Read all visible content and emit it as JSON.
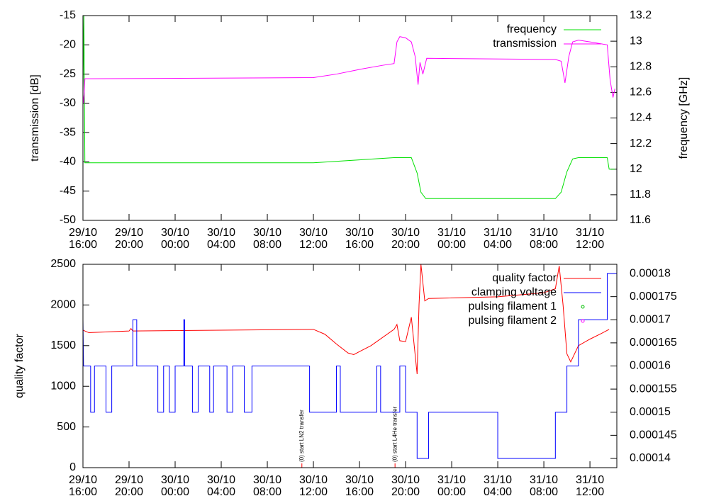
{
  "chart_data": [
    {
      "type": "line",
      "ylabel": "transmission [dB]",
      "y2label": "frequency [GHz]",
      "xlim": [
        "29/10 16:00",
        "31/10 14:20"
      ],
      "xticks": [
        {
          "value": "29/10 16:00",
          "label": "29/10\n16:00"
        },
        {
          "value": "29/10 20:00",
          "label": "29/10\n20:00"
        },
        {
          "value": "30/10 00:00",
          "label": "30/10\n00:00"
        },
        {
          "value": "30/10 04:00",
          "label": "30/10\n04:00"
        },
        {
          "value": "30/10 08:00",
          "label": "30/10\n08:00"
        },
        {
          "value": "30/10 12:00",
          "label": "30/10\n12:00"
        },
        {
          "value": "30/10 16:00",
          "label": "30/10\n16:00"
        },
        {
          "value": "30/10 20:00",
          "label": "30/10\n20:00"
        },
        {
          "value": "31/10 00:00",
          "label": "31/10\n00:00"
        },
        {
          "value": "31/10 04:00",
          "label": "31/10\n04:00"
        },
        {
          "value": "31/10 08:00",
          "label": "31/10\n08:00"
        },
        {
          "value": "31/10 12:00",
          "label": "31/10\n12:00"
        }
      ],
      "ylim": [
        -50,
        -15
      ],
      "yticks": [
        -50,
        -45,
        -40,
        -35,
        -30,
        -25,
        -20,
        -15
      ],
      "y2lim": [
        11.6,
        13.2
      ],
      "y2ticks": [
        11.6,
        11.8,
        12,
        12.2,
        12.4,
        12.6,
        12.8,
        13,
        13.2
      ],
      "legend": "top-right",
      "series": [
        {
          "name": "frequency",
          "color": "#00e000",
          "axis": "y2",
          "style": "line",
          "x": [
            "29/10 16:00",
            "29/10 16:05",
            "29/10 16:10",
            "30/10 12:00",
            "30/10 19:00",
            "30/10 20:30",
            "30/10 21:00",
            "30/10 21:20",
            "30/10 21:45",
            "31/10 09:00",
            "31/10 09:30",
            "31/10 10:00",
            "31/10 10:30",
            "31/10 11:00",
            "31/10 13:30",
            "31/10 13:40",
            "31/10 14:10"
          ],
          "values": [
            12.6,
            13.2,
            12.05,
            12.05,
            12.09,
            12.09,
            11.97,
            11.82,
            11.77,
            11.77,
            11.82,
            11.98,
            12.08,
            12.09,
            12.09,
            12.0,
            12.0
          ]
        },
        {
          "name": "transmission",
          "color": "#ff00ff",
          "axis": "y",
          "style": "line",
          "x": [
            "29/10 16:00",
            "29/10 16:05",
            "29/10 16:10",
            "30/10 12:00",
            "30/10 14:00",
            "30/10 16:00",
            "30/10 18:00",
            "30/10 19:00",
            "30/10 19:15",
            "30/10 19:30",
            "30/10 20:00",
            "30/10 20:30",
            "30/10 20:50",
            "30/10 21:05",
            "30/10 21:15",
            "30/10 21:30",
            "30/10 21:50",
            "31/10 09:00",
            "31/10 09:30",
            "31/10 09:50",
            "31/10 10:10",
            "31/10 10:30",
            "31/10 11:00",
            "31/10 12:00",
            "31/10 13:30",
            "31/10 13:45",
            "31/10 14:00",
            "31/10 14:10"
          ],
          "values": [
            -28.5,
            -30,
            -25.8,
            -25.6,
            -25,
            -24.2,
            -23.5,
            -23.2,
            -19.5,
            -18.6,
            -18.8,
            -19.5,
            -22,
            -26.8,
            -23,
            -25,
            -22.3,
            -22.5,
            -22.8,
            -26.5,
            -22,
            -19.5,
            -19.2,
            -19.5,
            -20,
            -26,
            -29,
            -27.5
          ]
        }
      ]
    },
    {
      "type": "line",
      "ylabel": "quality factor",
      "xlim": [
        "29/10 16:00",
        "31/10 14:20"
      ],
      "xticks": [
        {
          "value": "29/10 16:00",
          "label": "29/10\n16:00"
        },
        {
          "value": "29/10 20:00",
          "label": "29/10\n20:00"
        },
        {
          "value": "30/10 00:00",
          "label": "30/10\n00:00"
        },
        {
          "value": "30/10 04:00",
          "label": "30/10\n04:00"
        },
        {
          "value": "30/10 08:00",
          "label": "30/10\n08:00"
        },
        {
          "value": "30/10 12:00",
          "label": "30/10\n12:00"
        },
        {
          "value": "30/10 16:00",
          "label": "30/10\n16:00"
        },
        {
          "value": "30/10 20:00",
          "label": "30/10\n20:00"
        },
        {
          "value": "31/10 00:00",
          "label": "31/10\n00:00"
        },
        {
          "value": "31/10 04:00",
          "label": "31/10\n04:00"
        },
        {
          "value": "31/10 08:00",
          "label": "31/10\n08:00"
        },
        {
          "value": "31/10 12:00",
          "label": "31/10\n12:00"
        }
      ],
      "ylim": [
        0,
        2500
      ],
      "yticks": [
        0,
        500,
        1000,
        1500,
        2000,
        2500
      ],
      "y2lim": [
        0.000138,
        0.000182
      ],
      "y2ticks": [
        0.00014,
        0.000145,
        0.00015,
        0.000155,
        0.00016,
        0.000165,
        0.00017,
        0.000175,
        0.00018
      ],
      "legend": "top-right",
      "annotations": [
        {
          "text": "(0) start LN2 transfer",
          "x": "30/10 11:00"
        },
        {
          "text": "(0) start L4He transfer",
          "x": "30/10 19:05"
        }
      ],
      "series": [
        {
          "name": "quality factor",
          "color": "#ff0000",
          "axis": "y",
          "style": "line",
          "x": [
            "29/10 16:00",
            "29/10 16:30",
            "29/10 20:00",
            "29/10 20:10",
            "29/10 20:20",
            "30/10 12:00",
            "30/10 13:00",
            "30/10 14:00",
            "30/10 15:00",
            "30/10 15:30",
            "30/10 17:00",
            "30/10 19:00",
            "30/10 19:15",
            "30/10 19:30",
            "30/10 20:00",
            "30/10 20:30",
            "30/10 20:45",
            "30/10 21:00",
            "30/10 21:10",
            "30/10 21:20",
            "30/10 21:40",
            "30/10 22:00",
            "31/10 04:00",
            "31/10 08:00",
            "31/10 09:00",
            "31/10 09:20",
            "31/10 09:40",
            "31/10 10:00",
            "31/10 10:20",
            "31/10 11:00",
            "31/10 12:00",
            "31/10 13:00",
            "31/10 13:40"
          ],
          "values": [
            1690,
            1660,
            1680,
            1710,
            1680,
            1700,
            1640,
            1520,
            1410,
            1390,
            1500,
            1700,
            1760,
            1560,
            1550,
            1850,
            1500,
            1150,
            2000,
            2500,
            2050,
            2080,
            2100,
            2150,
            2200,
            2480,
            2000,
            1400,
            1300,
            1500,
            1580,
            1650,
            1700
          ]
        },
        {
          "name": "clamping voltage",
          "color": "#0000ff",
          "axis": "y2",
          "style": "line",
          "x": [
            "29/10 16:00",
            "29/10 16:03",
            "29/10 16:40",
            "29/10 16:40",
            "29/10 17:00",
            "29/10 17:00",
            "29/10 18:00",
            "29/10 18:00",
            "29/10 18:30",
            "29/10 18:30",
            "29/10 20:20",
            "29/10 20:20",
            "29/10 20:40",
            "29/10 20:40",
            "29/10 22:30",
            "29/10 22:30",
            "29/10 23:00",
            "29/10 23:00",
            "29/10 23:30",
            "29/10 23:30",
            "30/10 00:00",
            "30/10 00:00",
            "30/10 00:45",
            "30/10 00:45",
            "30/10 00:50",
            "30/10 00:50",
            "30/10 01:30",
            "30/10 01:30",
            "30/10 02:00",
            "30/10 02:00",
            "30/10 03:00",
            "30/10 03:00",
            "30/10 03:20",
            "30/10 03:20",
            "30/10 04:30",
            "30/10 04:30",
            "30/10 05:00",
            "30/10 05:00",
            "30/10 06:00",
            "30/10 06:00",
            "30/10 06:40",
            "30/10 06:40",
            "30/10 11:40",
            "30/10 11:40",
            "30/10 14:00",
            "30/10 14:00",
            "30/10 14:20",
            "30/10 14:20",
            "30/10 17:30",
            "30/10 17:30",
            "30/10 17:50",
            "30/10 17:50",
            "30/10 19:30",
            "30/10 19:30",
            "30/10 20:00",
            "30/10 20:00",
            "30/10 21:00",
            "30/10 21:00",
            "30/10 22:00",
            "30/10 22:00",
            "30/10 22:20",
            "30/10 22:20",
            "31/10 04:00",
            "31/10 04:00",
            "31/10 09:00",
            "31/10 09:00",
            "31/10 10:00",
            "31/10 10:00",
            "31/10 11:00",
            "31/10 11:00",
            "31/10 13:30",
            "31/10 13:30",
            "31/10 14:20"
          ],
          "values": [
            0.00017,
            0.00016,
            0.00016,
            0.00015,
            0.00015,
            0.00016,
            0.00016,
            0.00015,
            0.00015,
            0.00016,
            0.00016,
            0.00017,
            0.00017,
            0.00016,
            0.00016,
            0.00015,
            0.00015,
            0.00016,
            0.00016,
            0.00015,
            0.00015,
            0.00016,
            0.00016,
            0.00017,
            0.00017,
            0.00016,
            0.00016,
            0.00015,
            0.00015,
            0.00016,
            0.00016,
            0.00015,
            0.00015,
            0.00016,
            0.00016,
            0.00015,
            0.00015,
            0.00016,
            0.00016,
            0.00015,
            0.00015,
            0.00016,
            0.00016,
            0.00015,
            0.00015,
            0.00016,
            0.00016,
            0.00015,
            0.00015,
            0.00016,
            0.00016,
            0.00015,
            0.00015,
            0.00016,
            0.00016,
            0.00015,
            0.00015,
            0.00014,
            0.00014,
            0.00015,
            0.00015,
            0.00015,
            0.00015,
            0.00014,
            0.00014,
            0.00015,
            0.00015,
            0.00016,
            0.00016,
            0.00017,
            0.00017,
            0.00018,
            0.00018
          ]
        },
        {
          "name": "pulsing filament 1",
          "color": "#00c000",
          "axis": "y",
          "style": "points",
          "x": [],
          "values": []
        },
        {
          "name": "pulsing filament 2",
          "color": "#ff00ff",
          "axis": "y",
          "style": "points",
          "x": [],
          "values": []
        }
      ]
    }
  ]
}
